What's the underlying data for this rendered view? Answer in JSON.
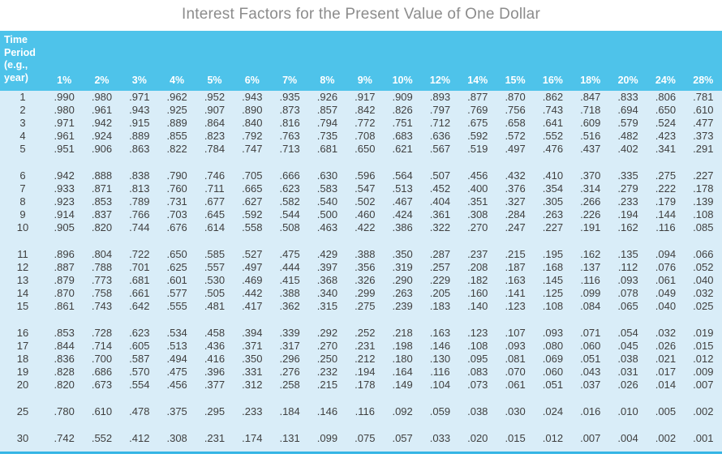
{
  "title": "Interest Factors for the Present Value of One Dollar",
  "colors": {
    "header_bg": "#4ec3ea",
    "body_bg": "#d9edf8",
    "accent_line": "#35b5e5",
    "title_color": "#8c8c8c",
    "text_color": "#3f3f3f"
  },
  "table": {
    "corner_lines": [
      "Time",
      "Period",
      "(e.g.,",
      "year)"
    ],
    "rate_headers": [
      "1%",
      "2%",
      "3%",
      "4%",
      "5%",
      "6%",
      "7%",
      "8%",
      "9%",
      "10%",
      "12%",
      "14%",
      "15%",
      "16%",
      "18%",
      "20%",
      "24%",
      "28%"
    ],
    "groups": [
      {
        "rows": [
          {
            "period": "1",
            "values": [
              ".990",
              ".980",
              ".971",
              ".962",
              ".952",
              ".943",
              ".935",
              ".926",
              ".917",
              ".909",
              ".893",
              ".877",
              ".870",
              ".862",
              ".847",
              ".833",
              ".806",
              ".781"
            ]
          },
          {
            "period": "2",
            "values": [
              ".980",
              ".961",
              ".943",
              ".925",
              ".907",
              ".890",
              ".873",
              ".857",
              ".842",
              ".826",
              ".797",
              ".769",
              ".756",
              ".743",
              ".718",
              ".694",
              ".650",
              ".610"
            ]
          },
          {
            "period": "3",
            "values": [
              ".971",
              ".942",
              ".915",
              ".889",
              ".864",
              ".840",
              ".816",
              ".794",
              ".772",
              ".751",
              ".712",
              ".675",
              ".658",
              ".641",
              ".609",
              ".579",
              ".524",
              ".477"
            ]
          },
          {
            "period": "4",
            "values": [
              ".961",
              ".924",
              ".889",
              ".855",
              ".823",
              ".792",
              ".763",
              ".735",
              ".708",
              ".683",
              ".636",
              ".592",
              ".572",
              ".552",
              ".516",
              ".482",
              ".423",
              ".373"
            ]
          },
          {
            "period": "5",
            "values": [
              ".951",
              ".906",
              ".863",
              ".822",
              ".784",
              ".747",
              ".713",
              ".681",
              ".650",
              ".621",
              ".567",
              ".519",
              ".497",
              ".476",
              ".437",
              ".402",
              ".341",
              ".291"
            ]
          }
        ]
      },
      {
        "rows": [
          {
            "period": "6",
            "values": [
              ".942",
              ".888",
              ".838",
              ".790",
              ".746",
              ".705",
              ".666",
              ".630",
              ".596",
              ".564",
              ".507",
              ".456",
              ".432",
              ".410",
              ".370",
              ".335",
              ".275",
              ".227"
            ]
          },
          {
            "period": "7",
            "values": [
              ".933",
              ".871",
              ".813",
              ".760",
              ".711",
              ".665",
              ".623",
              ".583",
              ".547",
              ".513",
              ".452",
              ".400",
              ".376",
              ".354",
              ".314",
              ".279",
              ".222",
              ".178"
            ]
          },
          {
            "period": "8",
            "values": [
              ".923",
              ".853",
              ".789",
              ".731",
              ".677",
              ".627",
              ".582",
              ".540",
              ".502",
              ".467",
              ".404",
              ".351",
              ".327",
              ".305",
              ".266",
              ".233",
              ".179",
              ".139"
            ]
          },
          {
            "period": "9",
            "values": [
              ".914",
              ".837",
              ".766",
              ".703",
              ".645",
              ".592",
              ".544",
              ".500",
              ".460",
              ".424",
              ".361",
              ".308",
              ".284",
              ".263",
              ".226",
              ".194",
              ".144",
              ".108"
            ]
          },
          {
            "period": "10",
            "values": [
              ".905",
              ".820",
              ".744",
              ".676",
              ".614",
              ".558",
              ".508",
              ".463",
              ".422",
              ".386",
              ".322",
              ".270",
              ".247",
              ".227",
              ".191",
              ".162",
              ".116",
              ".085"
            ]
          }
        ]
      },
      {
        "rows": [
          {
            "period": "11",
            "values": [
              ".896",
              ".804",
              ".722",
              ".650",
              ".585",
              ".527",
              ".475",
              ".429",
              ".388",
              ".350",
              ".287",
              ".237",
              ".215",
              ".195",
              ".162",
              ".135",
              ".094",
              ".066"
            ]
          },
          {
            "period": "12",
            "values": [
              ".887",
              ".788",
              ".701",
              ".625",
              ".557",
              ".497",
              ".444",
              ".397",
              ".356",
              ".319",
              ".257",
              ".208",
              ".187",
              ".168",
              ".137",
              ".112",
              ".076",
              ".052"
            ]
          },
          {
            "period": "13",
            "values": [
              ".879",
              ".773",
              ".681",
              ".601",
              ".530",
              ".469",
              ".415",
              ".368",
              ".326",
              ".290",
              ".229",
              ".182",
              ".163",
              ".145",
              ".116",
              ".093",
              ".061",
              ".040"
            ]
          },
          {
            "period": "14",
            "values": [
              ".870",
              ".758",
              ".661",
              ".577",
              ".505",
              ".442",
              ".388",
              ".340",
              ".299",
              ".263",
              ".205",
              ".160",
              ".141",
              ".125",
              ".099",
              ".078",
              ".049",
              ".032"
            ]
          },
          {
            "period": "15",
            "values": [
              ".861",
              ".743",
              ".642",
              ".555",
              ".481",
              ".417",
              ".362",
              ".315",
              ".275",
              ".239",
              ".183",
              ".140",
              ".123",
              ".108",
              ".084",
              ".065",
              ".040",
              ".025"
            ]
          }
        ]
      },
      {
        "rows": [
          {
            "period": "16",
            "values": [
              ".853",
              ".728",
              ".623",
              ".534",
              ".458",
              ".394",
              ".339",
              ".292",
              ".252",
              ".218",
              ".163",
              ".123",
              ".107",
              ".093",
              ".071",
              ".054",
              ".032",
              ".019"
            ]
          },
          {
            "period": "17",
            "values": [
              ".844",
              ".714",
              ".605",
              ".513",
              ".436",
              ".371",
              ".317",
              ".270",
              ".231",
              ".198",
              ".146",
              ".108",
              ".093",
              ".080",
              ".060",
              ".045",
              ".026",
              ".015"
            ]
          },
          {
            "period": "18",
            "values": [
              ".836",
              ".700",
              ".587",
              ".494",
              ".416",
              ".350",
              ".296",
              ".250",
              ".212",
              ".180",
              ".130",
              ".095",
              ".081",
              ".069",
              ".051",
              ".038",
              ".021",
              ".012"
            ]
          },
          {
            "period": "19",
            "values": [
              ".828",
              ".686",
              ".570",
              ".475",
              ".396",
              ".331",
              ".276",
              ".232",
              ".194",
              ".164",
              ".116",
              ".083",
              ".070",
              ".060",
              ".043",
              ".031",
              ".017",
              ".009"
            ]
          },
          {
            "period": "20",
            "values": [
              ".820",
              ".673",
              ".554",
              ".456",
              ".377",
              ".312",
              ".258",
              ".215",
              ".178",
              ".149",
              ".104",
              ".073",
              ".061",
              ".051",
              ".037",
              ".026",
              ".014",
              ".007"
            ]
          }
        ]
      },
      {
        "rows": [
          {
            "period": "25",
            "values": [
              ".780",
              ".610",
              ".478",
              ".375",
              ".295",
              ".233",
              ".184",
              ".146",
              ".116",
              ".092",
              ".059",
              ".038",
              ".030",
              ".024",
              ".016",
              ".010",
              ".005",
              ".002"
            ]
          }
        ]
      },
      {
        "rows": [
          {
            "period": "30",
            "values": [
              ".742",
              ".552",
              ".412",
              ".308",
              ".231",
              ".174",
              ".131",
              ".099",
              ".075",
              ".057",
              ".033",
              ".020",
              ".015",
              ".012",
              ".007",
              ".004",
              ".002",
              ".001"
            ]
          }
        ]
      }
    ]
  }
}
